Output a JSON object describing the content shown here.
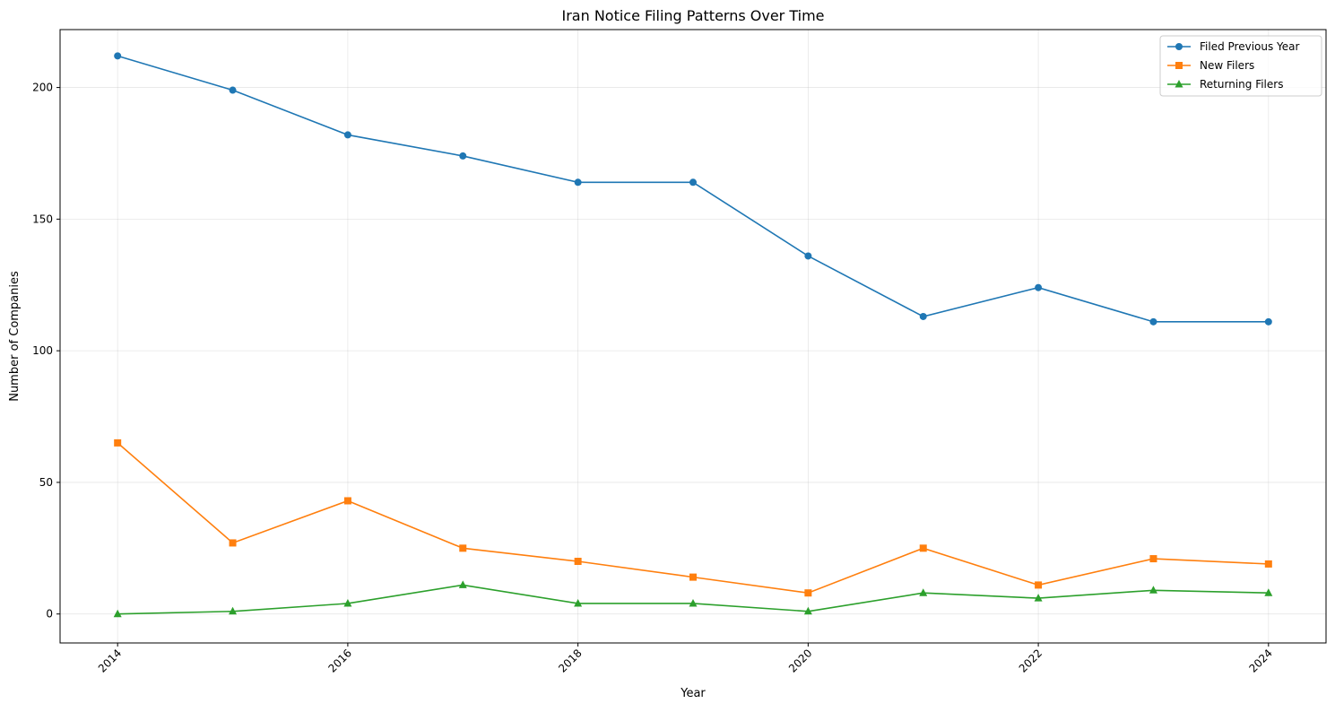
{
  "chart_data": {
    "type": "line",
    "title": "Iran Notice Filing Patterns Over Time",
    "xlabel": "Year",
    "ylabel": "Number of Companies",
    "x": [
      2014,
      2015,
      2016,
      2017,
      2018,
      2019,
      2020,
      2021,
      2022,
      2023,
      2024
    ],
    "xlim": [
      2013.5,
      2024.5
    ],
    "ylim": [
      -11,
      222
    ],
    "x_ticks": [
      "2014",
      "2016",
      "2018",
      "2020",
      "2022",
      "2024"
    ],
    "x_tick_values": [
      2014,
      2016,
      2018,
      2020,
      2022,
      2024
    ],
    "y_ticks": [
      "0",
      "50",
      "100",
      "150",
      "200"
    ],
    "y_tick_values": [
      0,
      50,
      100,
      150,
      200
    ],
    "grid": true,
    "legend_position": "top-right",
    "series": [
      {
        "name": "Filed Previous Year",
        "color": "#1f77b4",
        "marker": "circle",
        "values": [
          212,
          199,
          182,
          174,
          164,
          164,
          136,
          113,
          124,
          111,
          111
        ]
      },
      {
        "name": "New Filers",
        "color": "#ff7f0e",
        "marker": "square",
        "values": [
          65,
          27,
          43,
          25,
          20,
          14,
          8,
          25,
          11,
          21,
          19
        ]
      },
      {
        "name": "Returning Filers",
        "color": "#2ca02c",
        "marker": "triangle",
        "values": [
          0,
          1,
          4,
          11,
          4,
          4,
          1,
          8,
          6,
          9,
          8
        ]
      }
    ]
  }
}
